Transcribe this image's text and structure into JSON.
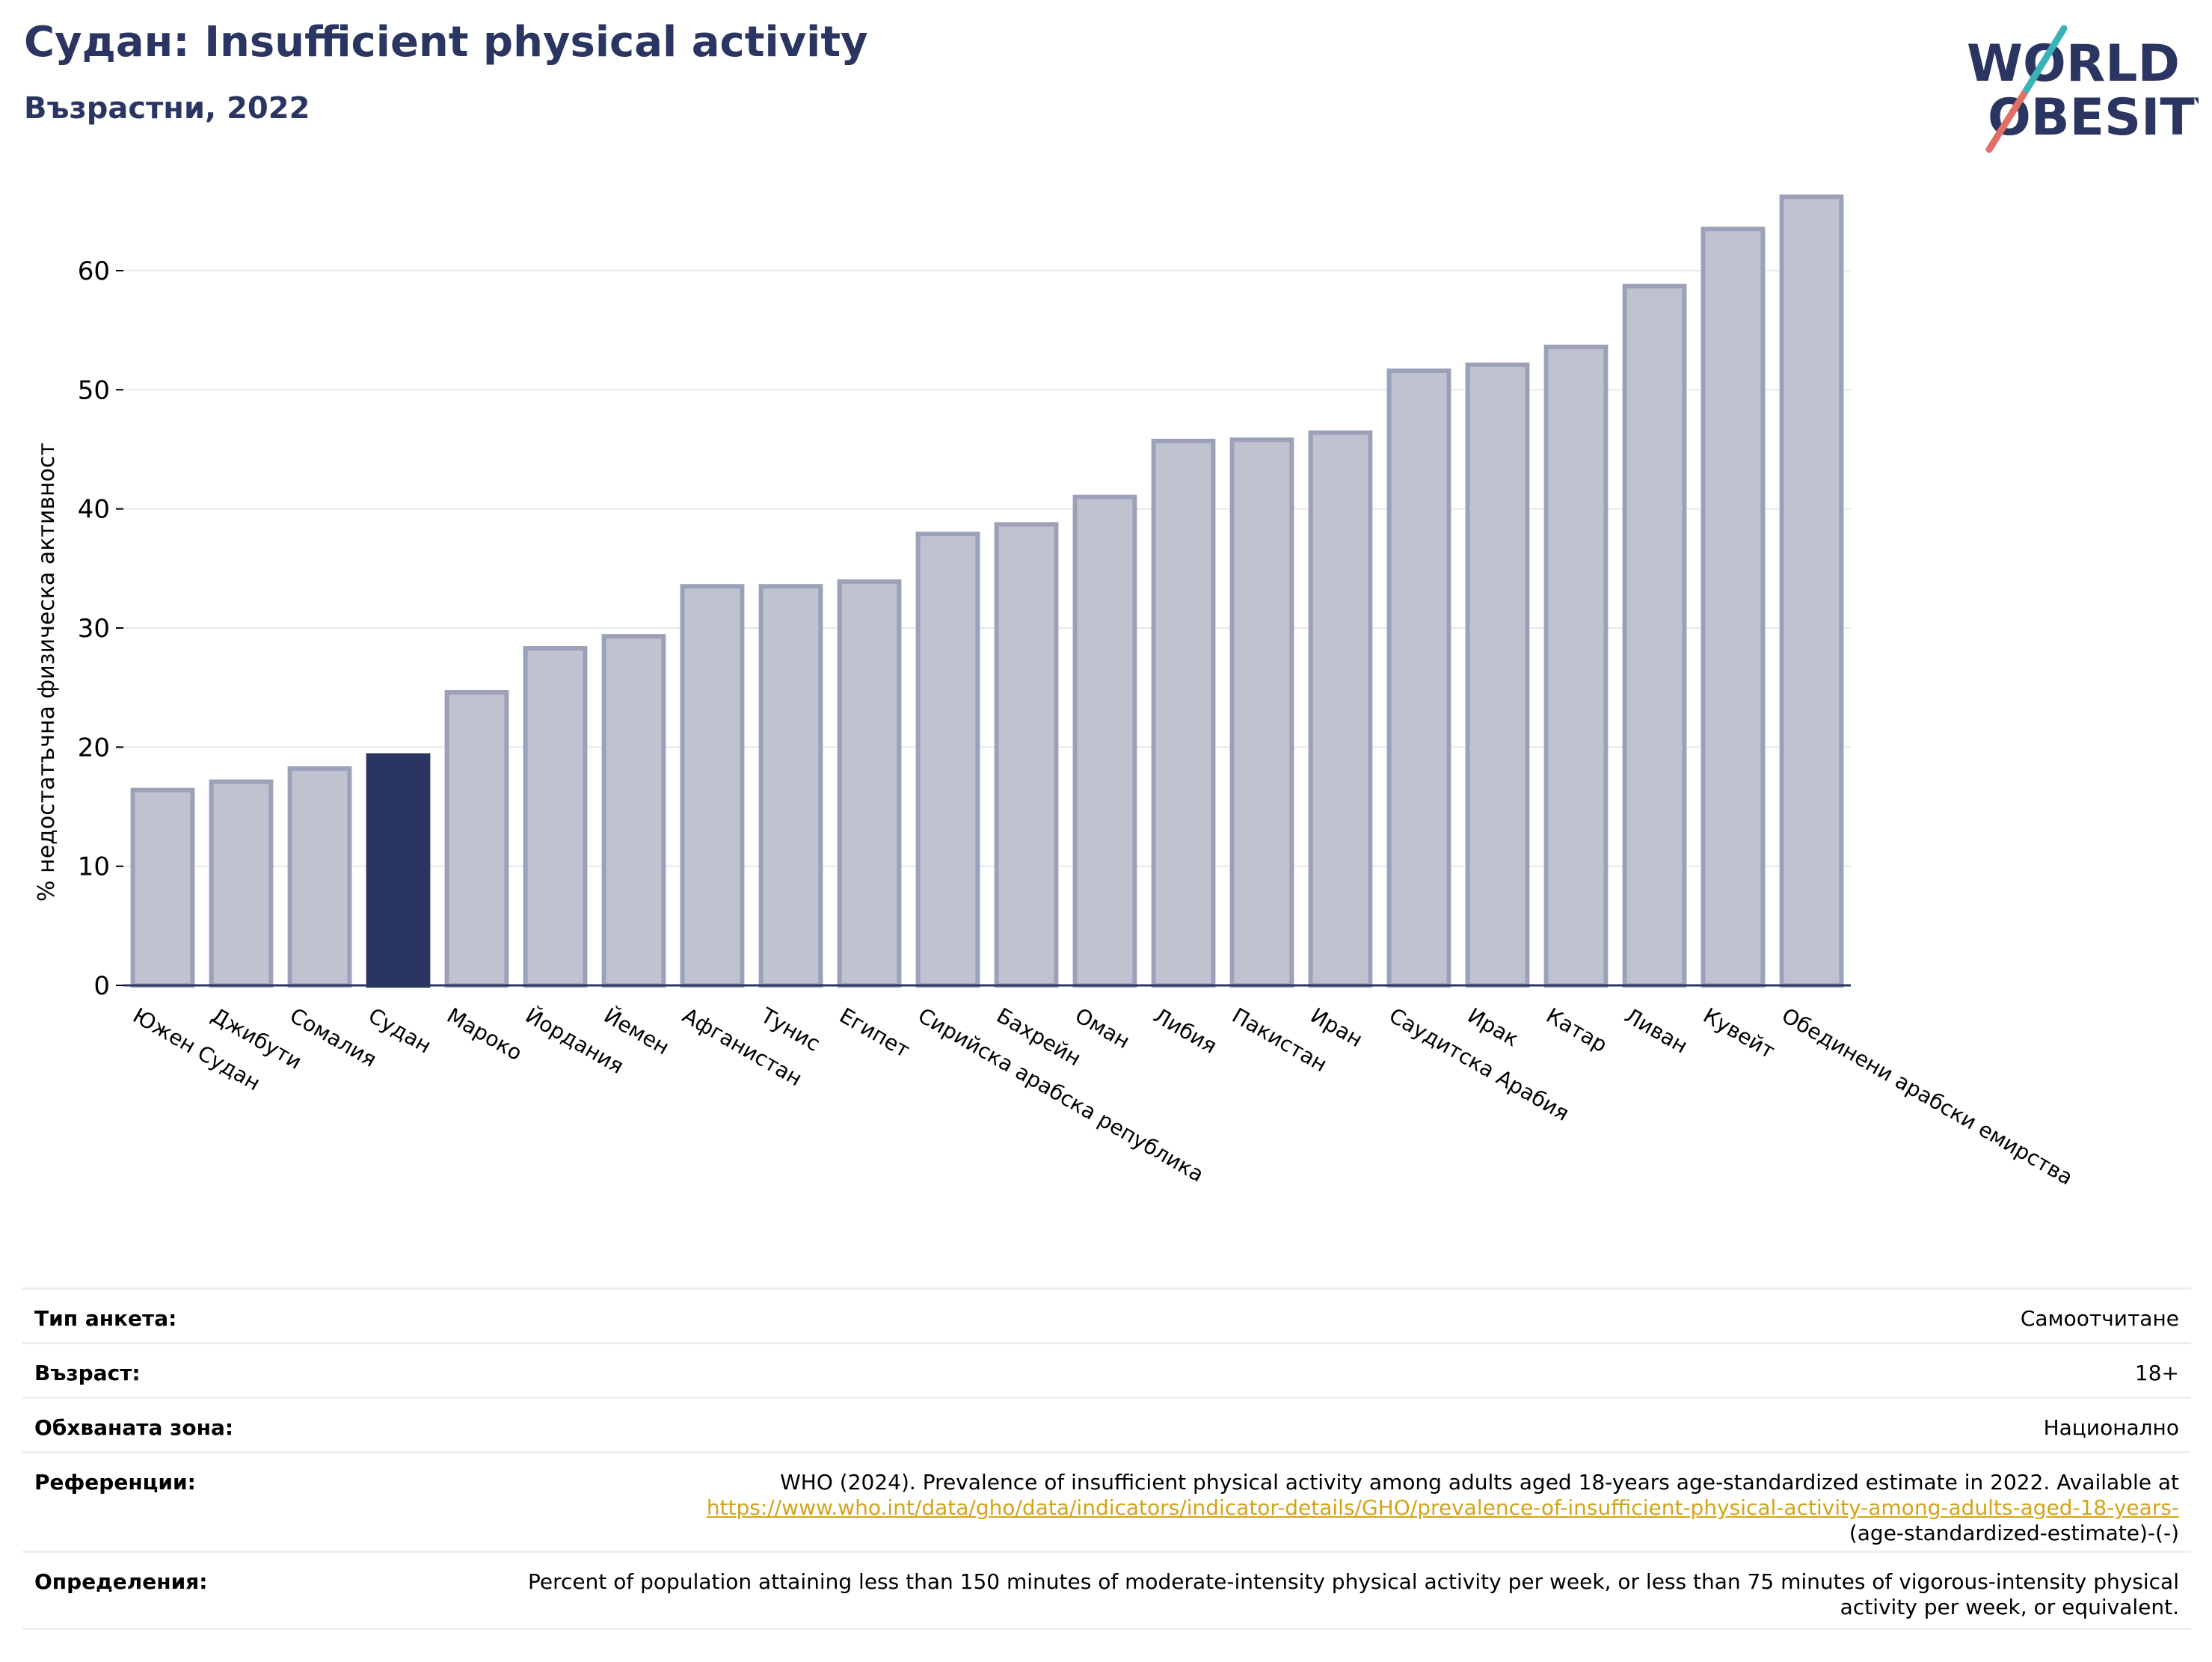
{
  "header": {
    "title": "Судан: Insufficient physical activity",
    "subtitle": "Възрастни, 2022"
  },
  "logo": {
    "line1": "WORLD",
    "line2": "OBESITY"
  },
  "chart_data": {
    "type": "bar",
    "ylabel": "% недостатъчна физическа активност",
    "ylim": [
      0,
      70
    ],
    "yticks": [
      0,
      10,
      20,
      30,
      40,
      50,
      60
    ],
    "grid": true,
    "highlight": "Судан",
    "categories": [
      "Южен Судан",
      "Джибути",
      "Сомалия",
      "Судан",
      "Мароко",
      "Йордания",
      "Йемен",
      "Афганистан",
      "Тунис",
      "Египет",
      "Сирийска арабска република",
      "Бахрейн",
      "Оман",
      "Либия",
      "Пакистан",
      "Иран",
      "Саудитска Арабия",
      "Ирак",
      "Катар",
      "Ливан",
      "Кувейт",
      "Обединени арабски емирства"
    ],
    "values": [
      16.4,
      17.1,
      18.2,
      19.3,
      24.6,
      28.3,
      29.3,
      33.5,
      33.5,
      33.9,
      37.9,
      38.7,
      41.0,
      45.7,
      45.8,
      46.4,
      51.6,
      52.1,
      53.6,
      58.7,
      63.5,
      66.2
    ],
    "colors": {
      "default": "#bfc2cf",
      "default_stroke": "#9ca1ba",
      "highlight": "#2b3561",
      "axis": "#2b3561",
      "grid": "#e6e8ef"
    }
  },
  "info": {
    "survey_label": "Тип анкета:",
    "survey_value": "Самоотчитане",
    "age_label": "Възраст:",
    "age_value": "18+",
    "area_label": "Обхваната зона:",
    "area_value": "Национално",
    "refs_label": "Референции:",
    "refs_text": "WHO (2024). Prevalence of insufficient physical activity among adults aged 18-years age-standardized estimate in 2022. Available at",
    "refs_link": "https://www.who.int/data/gho/data/indicators/indicator-details/GHO/prevalence-of-insufficient-physical-activity-among-adults-aged-18-years-",
    "refs_tail": "(age-standardized-estimate)-(-)",
    "defs_label": "Определения:",
    "defs_text": "Percent of population attaining less than 150 minutes of moderate-intensity physical activity per week, or less than 75 minutes of vigorous-intensity physical activity per week, or equivalent."
  }
}
